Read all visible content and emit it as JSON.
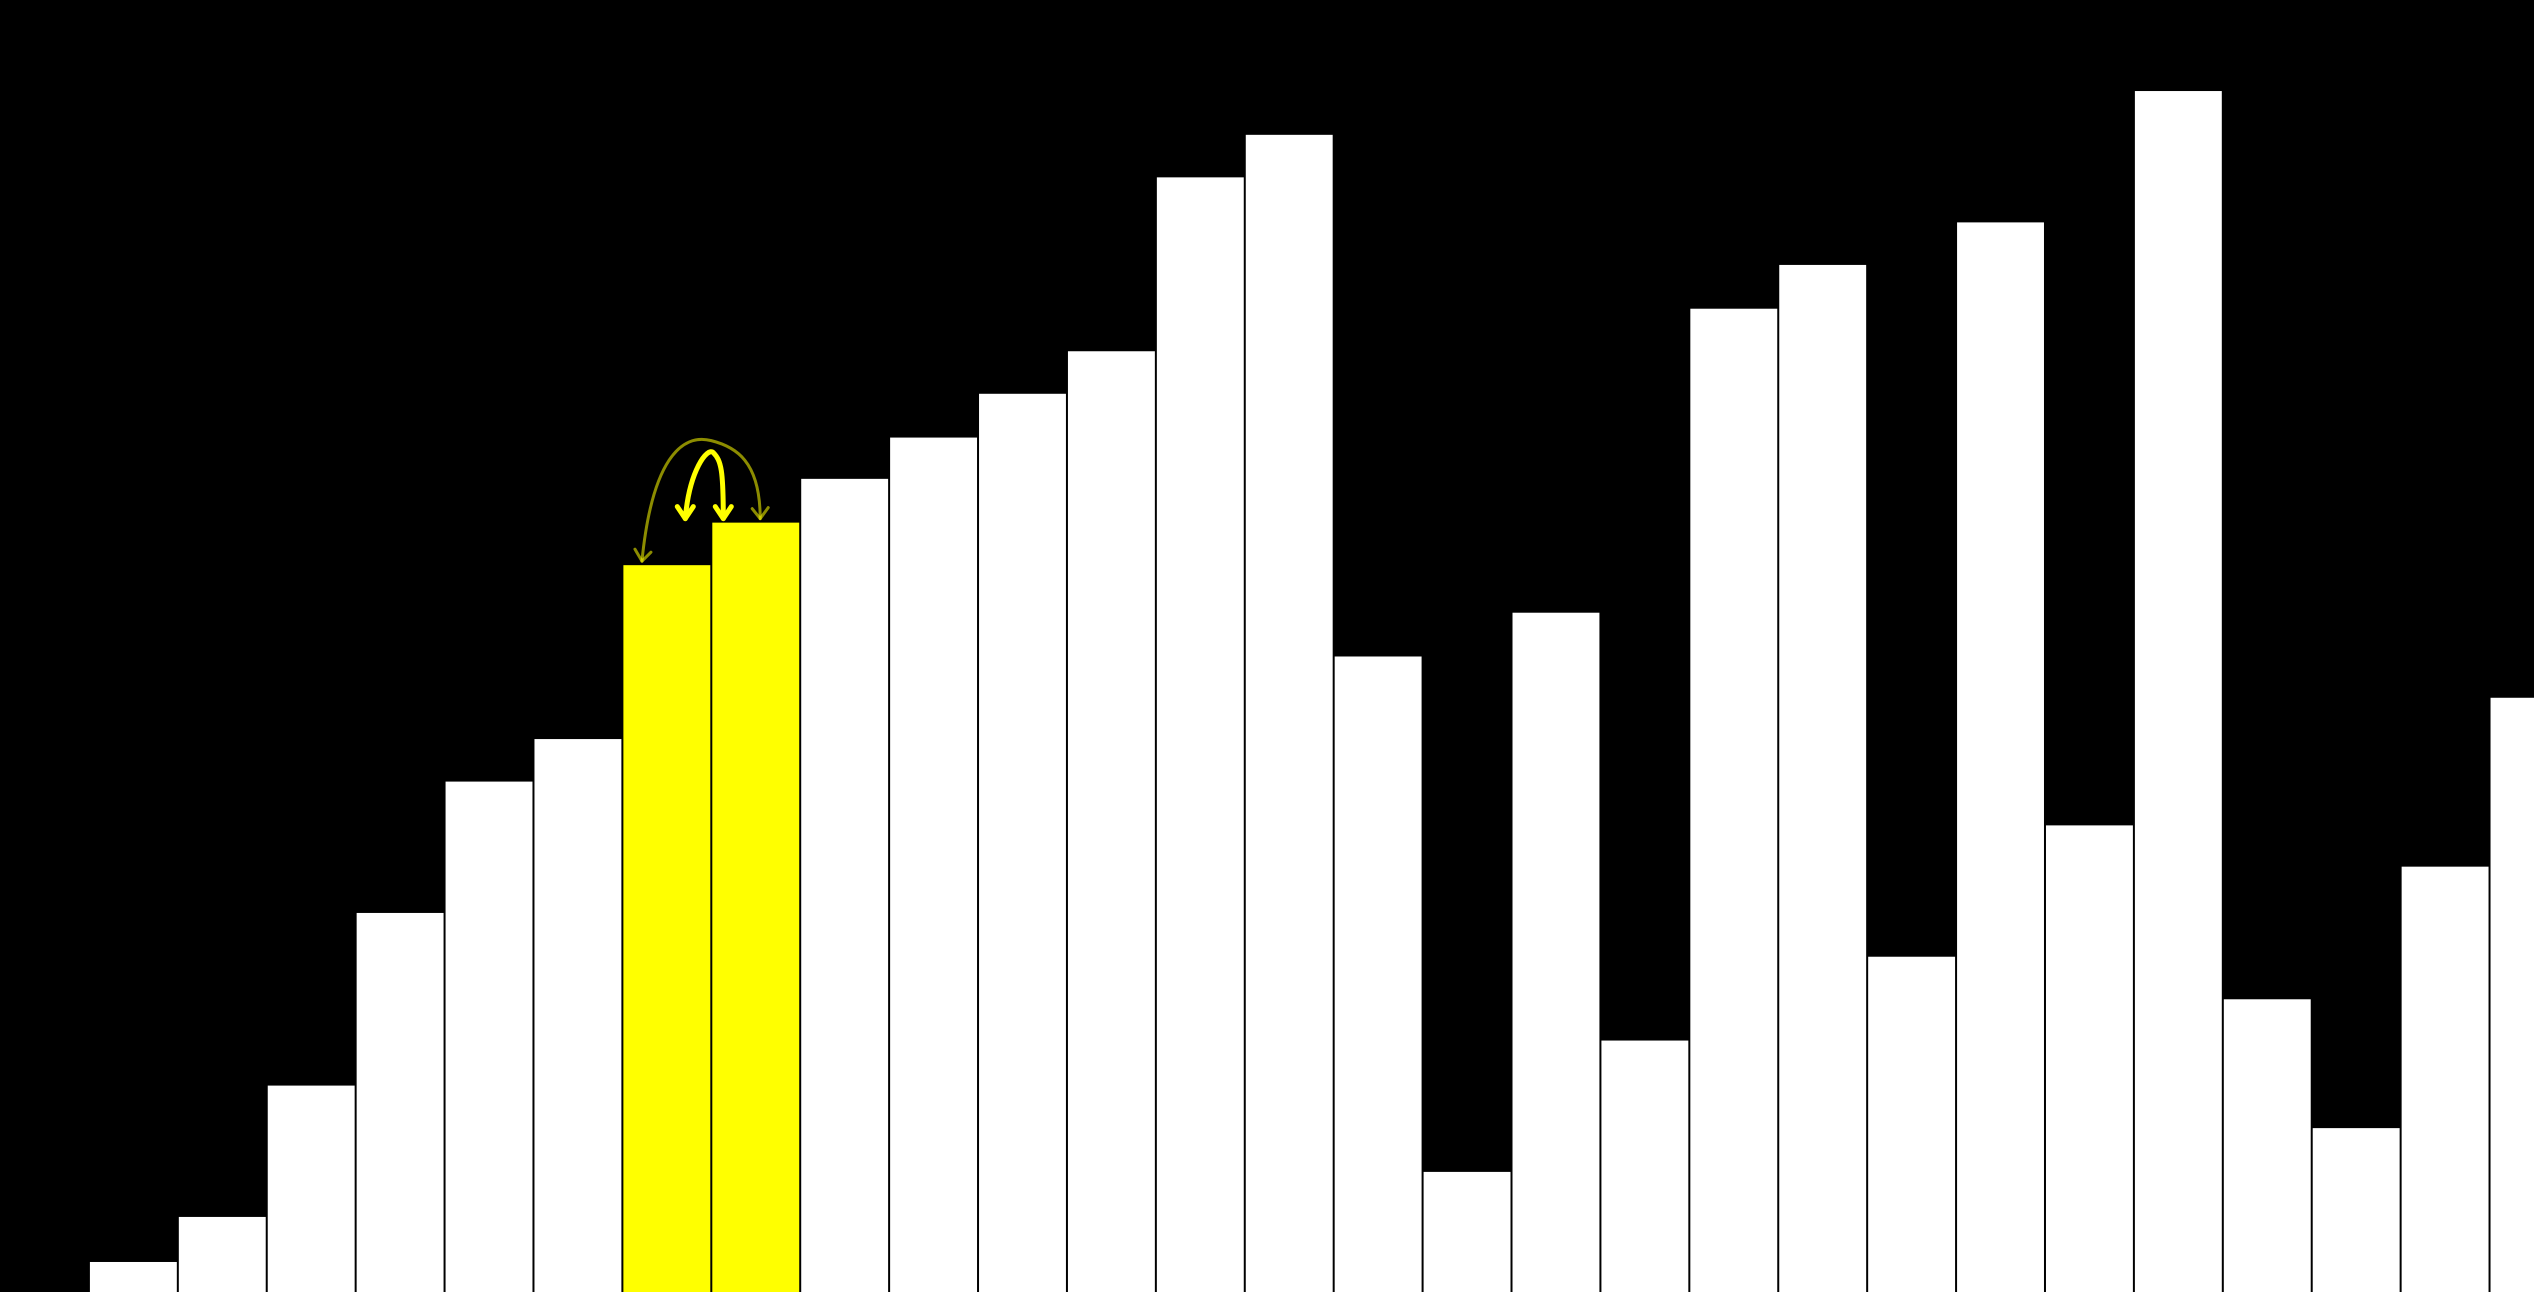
{
  "chart_data": {
    "type": "bar",
    "title": "",
    "xlabel": "",
    "ylabel": "",
    "ylim": [
      0,
      100
    ],
    "grid": false,
    "legend": "none",
    "values": [
      0,
      2.4,
      6.0,
      16.5,
      30.3,
      40.8,
      44.2,
      58.1,
      61.5,
      65.0,
      68.3,
      71.8,
      75.2,
      89.1,
      92.5,
      50.8,
      9.6,
      54.3,
      20.1,
      78.6,
      82.1,
      26.8,
      85.5,
      37.3,
      96.0,
      23.4,
      13.1,
      34.0,
      47.5
    ],
    "highlighted_indices": [
      7,
      8
    ],
    "annotation": "swap-arrows",
    "colors": {
      "background": "#000000",
      "bar": "#ffffff",
      "highlight": "#ffff00",
      "arrow": "#ffff00"
    }
  }
}
